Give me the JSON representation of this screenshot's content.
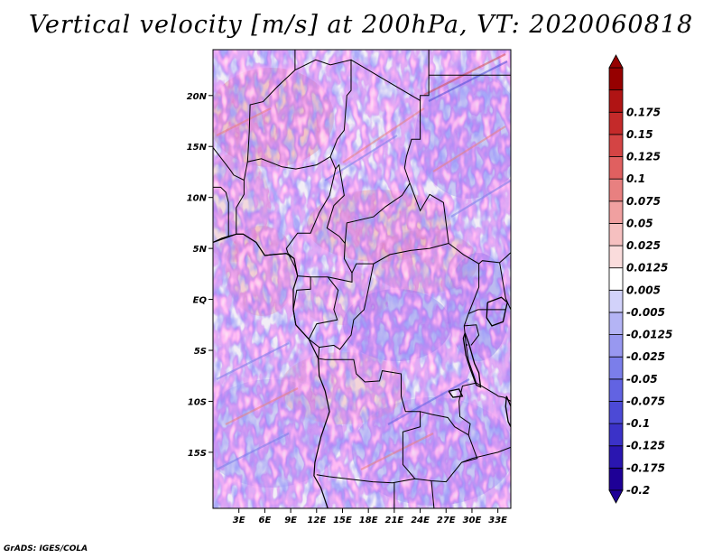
{
  "chart_data": {
    "type": "heatmap",
    "title": "Vertical velocity [m/s] at 200hPa, VT: 2020060818",
    "variable": "Vertical velocity",
    "units": "m/s",
    "level": "200hPa",
    "valid_time": "2020060818",
    "x_range": [
      0,
      34.5
    ],
    "y_range": [
      -20.5,
      24.5
    ],
    "x_ticks": [
      {
        "value": 3,
        "label": "3E"
      },
      {
        "value": 6,
        "label": "6E"
      },
      {
        "value": 9,
        "label": "9E"
      },
      {
        "value": 12,
        "label": "12E"
      },
      {
        "value": 15,
        "label": "15E"
      },
      {
        "value": 18,
        "label": "18E"
      },
      {
        "value": 21,
        "label": "21E"
      },
      {
        "value": 24,
        "label": "24E"
      },
      {
        "value": 27,
        "label": "27E"
      },
      {
        "value": 30,
        "label": "30E"
      },
      {
        "value": 33,
        "label": "33E"
      }
    ],
    "y_ticks": [
      {
        "value": 20,
        "label": "20N"
      },
      {
        "value": 15,
        "label": "15N"
      },
      {
        "value": 10,
        "label": "10N"
      },
      {
        "value": 5,
        "label": "5N"
      },
      {
        "value": 0,
        "label": "EQ"
      },
      {
        "value": -5,
        "label": "5S"
      },
      {
        "value": -10,
        "label": "10S"
      },
      {
        "value": -15,
        "label": "15S"
      }
    ],
    "colorbar": {
      "levels": [
        "-0.2",
        "-0.175",
        "-0.125",
        "-0.1",
        "-0.075",
        "-0.05",
        "-0.025",
        "-0.0125",
        "-0.005",
        "0.005",
        "0.0125",
        "0.025",
        "0.05",
        "0.075",
        "0.1",
        "0.125",
        "0.15",
        "0.175"
      ],
      "colors": [
        "#1e0096",
        "#2a16b0",
        "#3b32c8",
        "#4c4ad6",
        "#6263e2",
        "#7b7eea",
        "#9898f0",
        "#b4b4f5",
        "#d2d2fa",
        "#ffffff",
        "#fadcdc",
        "#f6c0c0",
        "#f0a0a0",
        "#e88080",
        "#e06060",
        "#d44444",
        "#c42a2a",
        "#b01414",
        "#960000"
      ]
    }
  },
  "footer": "GrADS: IGES/COLA"
}
